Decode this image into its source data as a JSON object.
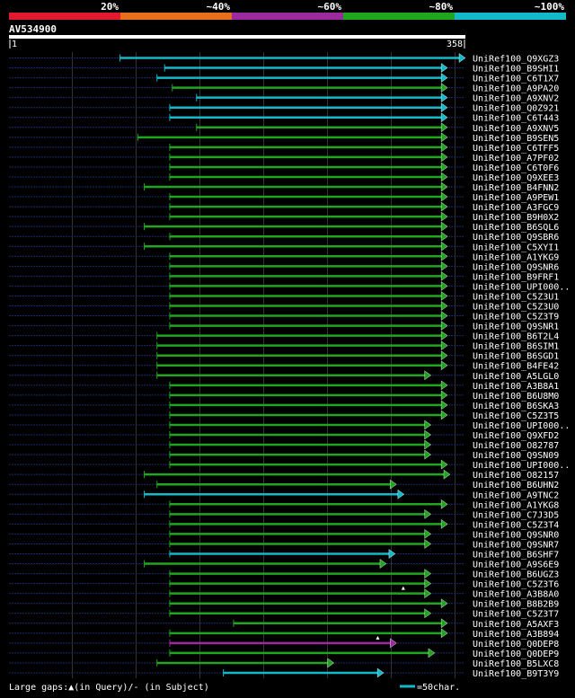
{
  "chart_data": {
    "type": "alignment-overview",
    "title": "AV534900",
    "query_range": [
      1,
      358
    ],
    "scale_labels": {
      "start": "1",
      "end": "358"
    },
    "legend": [
      {
        "label": "20%",
        "color": "#e31a2f"
      },
      {
        "label": "~40%",
        "color": "#e56f1a"
      },
      {
        "label": "~60%",
        "color": "#9a2a9d"
      },
      {
        "label": "~80%",
        "color": "#21a521"
      },
      {
        "label": "~100%",
        "color": "#12b9c9"
      }
    ],
    "footer": {
      "gaps_text": "Large gaps:▲(in Query)/- (in Subject)",
      "scale_text": "=50char.",
      "scale_color": "#12b9c9"
    },
    "hits": [
      {
        "name": "UniRef100_Q9XGZ3",
        "start": 88,
        "end": 358,
        "identity": "~100%",
        "ends": [
          "right"
        ]
      },
      {
        "name": "UniRef100_B9SHI1",
        "start": 123,
        "end": 344,
        "identity": "~100%",
        "ends": [
          "right"
        ]
      },
      {
        "name": "UniRef100_C6T1X7",
        "start": 117,
        "end": 344,
        "identity": "~100%",
        "ends": [
          "right"
        ]
      },
      {
        "name": "UniRef100_A9PA20",
        "start": 129,
        "end": 344,
        "identity": "~80%",
        "ends": [
          "right"
        ]
      },
      {
        "name": "UniRef100_A9XNV2",
        "start": 148,
        "end": 344,
        "identity": "~100%",
        "ends": [
          "right"
        ]
      },
      {
        "name": "UniRef100_Q0Z921",
        "start": 127,
        "end": 344,
        "identity": "~100%",
        "ends": [
          "right"
        ]
      },
      {
        "name": "UniRef100_C6T443",
        "start": 127,
        "end": 344,
        "identity": "~100%",
        "ends": [
          "right"
        ]
      },
      {
        "name": "UniRef100_A9XNV5",
        "start": 148,
        "end": 344,
        "identity": "~80%",
        "ends": [
          "right"
        ]
      },
      {
        "name": "UniRef100_B9SEN5",
        "start": 102,
        "end": 344,
        "identity": "~80%",
        "ends": [
          "right"
        ]
      },
      {
        "name": "UniRef100_C6TFF5",
        "start": 127,
        "end": 344,
        "identity": "~80%",
        "ends": [
          "right"
        ]
      },
      {
        "name": "UniRef100_A7PF02",
        "start": 127,
        "end": 344,
        "identity": "~80%",
        "ends": [
          "right"
        ]
      },
      {
        "name": "UniRef100_C6T0F6",
        "start": 127,
        "end": 344,
        "identity": "~80%",
        "ends": [
          "right"
        ]
      },
      {
        "name": "UniRef100_Q9XEE3",
        "start": 127,
        "end": 344,
        "identity": "~80%",
        "ends": [
          "right"
        ]
      },
      {
        "name": "UniRef100_B4FNN2",
        "start": 107,
        "end": 344,
        "identity": "~80%",
        "ends": [
          "right"
        ]
      },
      {
        "name": "UniRef100_A9PEW1",
        "start": 127,
        "end": 344,
        "identity": "~80%",
        "ends": [
          "right"
        ]
      },
      {
        "name": "UniRef100_A3FGC9",
        "start": 127,
        "end": 344,
        "identity": "~80%",
        "ends": [
          "right"
        ]
      },
      {
        "name": "UniRef100_B9H0X2",
        "start": 127,
        "end": 344,
        "identity": "~80%",
        "ends": [
          "right"
        ]
      },
      {
        "name": "UniRef100_B6SQL6",
        "start": 107,
        "end": 344,
        "identity": "~80%",
        "ends": [
          "right"
        ]
      },
      {
        "name": "UniRef100_Q9SBR6",
        "start": 127,
        "end": 344,
        "identity": "~80%",
        "ends": [
          "right"
        ]
      },
      {
        "name": "UniRef100_C5XYI1",
        "start": 107,
        "end": 344,
        "identity": "~80%",
        "ends": [
          "right"
        ]
      },
      {
        "name": "UniRef100_A1YKG9",
        "start": 127,
        "end": 344,
        "identity": "~80%",
        "ends": [
          "right"
        ]
      },
      {
        "name": "UniRef100_Q9SNR6",
        "start": 127,
        "end": 344,
        "identity": "~80%",
        "ends": [
          "right"
        ]
      },
      {
        "name": "UniRef100_B9FRF1",
        "start": 127,
        "end": 344,
        "identity": "~80%",
        "ends": [
          "right"
        ]
      },
      {
        "name": "UniRef100_UPI000..",
        "start": 127,
        "end": 344,
        "identity": "~80%",
        "ends": [
          "right"
        ]
      },
      {
        "name": "UniRef100_C5Z3U1",
        "start": 127,
        "end": 344,
        "identity": "~80%",
        "ends": [
          "right"
        ]
      },
      {
        "name": "UniRef100_C5Z3U0",
        "start": 127,
        "end": 344,
        "identity": "~80%",
        "ends": [
          "right"
        ]
      },
      {
        "name": "UniRef100_C5Z3T9",
        "start": 127,
        "end": 344,
        "identity": "~80%",
        "ends": [
          "right"
        ]
      },
      {
        "name": "UniRef100_Q9SNR1",
        "start": 127,
        "end": 344,
        "identity": "~80%",
        "ends": [
          "right"
        ]
      },
      {
        "name": "UniRef100_B6T2L4",
        "start": 117,
        "end": 344,
        "identity": "~80%",
        "ends": [
          "right"
        ]
      },
      {
        "name": "UniRef100_B6SIM1",
        "start": 117,
        "end": 344,
        "identity": "~80%",
        "ends": [
          "right"
        ]
      },
      {
        "name": "UniRef100_B6SGD1",
        "start": 117,
        "end": 344,
        "identity": "~80%",
        "ends": [
          "right"
        ]
      },
      {
        "name": "UniRef100_B4FE42",
        "start": 117,
        "end": 344,
        "identity": "~80%",
        "ends": [
          "right"
        ]
      },
      {
        "name": "UniRef100_A5LGL0",
        "start": 117,
        "end": 331,
        "identity": "~80%",
        "ends": [
          "right"
        ]
      },
      {
        "name": "UniRef100_A3B8A1",
        "start": 127,
        "end": 344,
        "identity": "~80%",
        "ends": [
          "right"
        ]
      },
      {
        "name": "UniRef100_B6U8M0",
        "start": 127,
        "end": 344,
        "identity": "~80%",
        "ends": [
          "right"
        ]
      },
      {
        "name": "UniRef100_B6SKA3",
        "start": 127,
        "end": 344,
        "identity": "~80%",
        "ends": [
          "right"
        ]
      },
      {
        "name": "UniRef100_C5Z3T5",
        "start": 127,
        "end": 344,
        "identity": "~80%",
        "ends": [
          "right"
        ]
      },
      {
        "name": "UniRef100_UPI000..",
        "start": 127,
        "end": 331,
        "identity": "~80%",
        "ends": [
          "right"
        ]
      },
      {
        "name": "UniRef100_Q9XFD2",
        "start": 127,
        "end": 331,
        "identity": "~80%",
        "ends": [
          "right"
        ]
      },
      {
        "name": "UniRef100_O82787",
        "start": 127,
        "end": 331,
        "identity": "~80%",
        "ends": [
          "right"
        ]
      },
      {
        "name": "UniRef100_Q9SN09",
        "start": 127,
        "end": 331,
        "identity": "~80%",
        "ends": [
          "right"
        ]
      },
      {
        "name": "UniRef100_UPI000..",
        "start": 127,
        "end": 344,
        "identity": "~80%",
        "ends": [
          "right"
        ]
      },
      {
        "name": "UniRef100_O82157",
        "start": 107,
        "end": 346,
        "identity": "~80%",
        "ends": [
          "right"
        ]
      },
      {
        "name": "UniRef100_B6UHN2",
        "start": 117,
        "end": 304,
        "identity": "~80%",
        "ends": [
          "right"
        ]
      },
      {
        "name": "UniRef100_A9TNC2",
        "start": 107,
        "end": 310,
        "identity": "~100%",
        "ends": [
          "right"
        ]
      },
      {
        "name": "UniRef100_A1YKG8",
        "start": 127,
        "end": 344,
        "identity": "~80%",
        "ends": [
          "right"
        ]
      },
      {
        "name": "UniRef100_C7J3D5",
        "start": 127,
        "end": 331,
        "identity": "~80%",
        "ends": [
          "right"
        ]
      },
      {
        "name": "UniRef100_C5Z3T4",
        "start": 127,
        "end": 344,
        "identity": "~80%",
        "ends": [
          "right"
        ]
      },
      {
        "name": "UniRef100_Q9SNR0",
        "start": 127,
        "end": 331,
        "identity": "~80%",
        "ends": [
          "right"
        ]
      },
      {
        "name": "UniRef100_Q9SNR7",
        "start": 127,
        "end": 331,
        "identity": "~80%",
        "ends": [
          "right"
        ]
      },
      {
        "name": "UniRef100_B6SHF7",
        "start": 127,
        "end": 303,
        "identity": "~100%",
        "ends": [
          "right"
        ]
      },
      {
        "name": "UniRef100_A9S6E9",
        "start": 107,
        "end": 296,
        "identity": "~80%",
        "ends": [
          "right"
        ]
      },
      {
        "name": "UniRef100_B6UGZ3",
        "start": 127,
        "end": 331,
        "identity": "~80%",
        "ends": [
          "right"
        ]
      },
      {
        "name": "UniRef100_C5Z3T6",
        "start": 127,
        "end": 331,
        "identity": "~80%",
        "ends": [
          "right"
        ]
      },
      {
        "name": "UniRef100_A3B8A0",
        "start": 127,
        "end": 331,
        "identity": "~80%",
        "ends": [
          "right"
        ],
        "gap_marker": [
          310
        ]
      },
      {
        "name": "UniRef100_B8B2B9",
        "start": 127,
        "end": 344,
        "identity": "~80%",
        "ends": [
          "right"
        ]
      },
      {
        "name": "UniRef100_C5Z3T7",
        "start": 127,
        "end": 331,
        "identity": "~80%",
        "ends": [
          "right"
        ]
      },
      {
        "name": "UniRef100_A5AXF3",
        "start": 177,
        "end": 344,
        "identity": "~80%",
        "ends": [
          "right"
        ]
      },
      {
        "name": "UniRef100_A3B894",
        "start": 127,
        "end": 344,
        "identity": "~80%",
        "ends": [
          "right"
        ]
      },
      {
        "name": "UniRef100_Q0DEP8",
        "start": 127,
        "end": 304,
        "identity": "~60%",
        "ends": [
          "right"
        ],
        "gap_marker": [
          290
        ]
      },
      {
        "name": "UniRef100_Q0DEP9",
        "start": 127,
        "end": 334,
        "identity": "~80%",
        "ends": [
          "right"
        ]
      },
      {
        "name": "UniRef100_B5LXC8",
        "start": 117,
        "end": 255,
        "identity": "~80%",
        "ends": [
          "right"
        ]
      },
      {
        "name": "UniRef100_B9T3Y9",
        "start": 169,
        "end": 294,
        "identity": "~100%",
        "ends": [
          "right"
        ]
      }
    ]
  }
}
